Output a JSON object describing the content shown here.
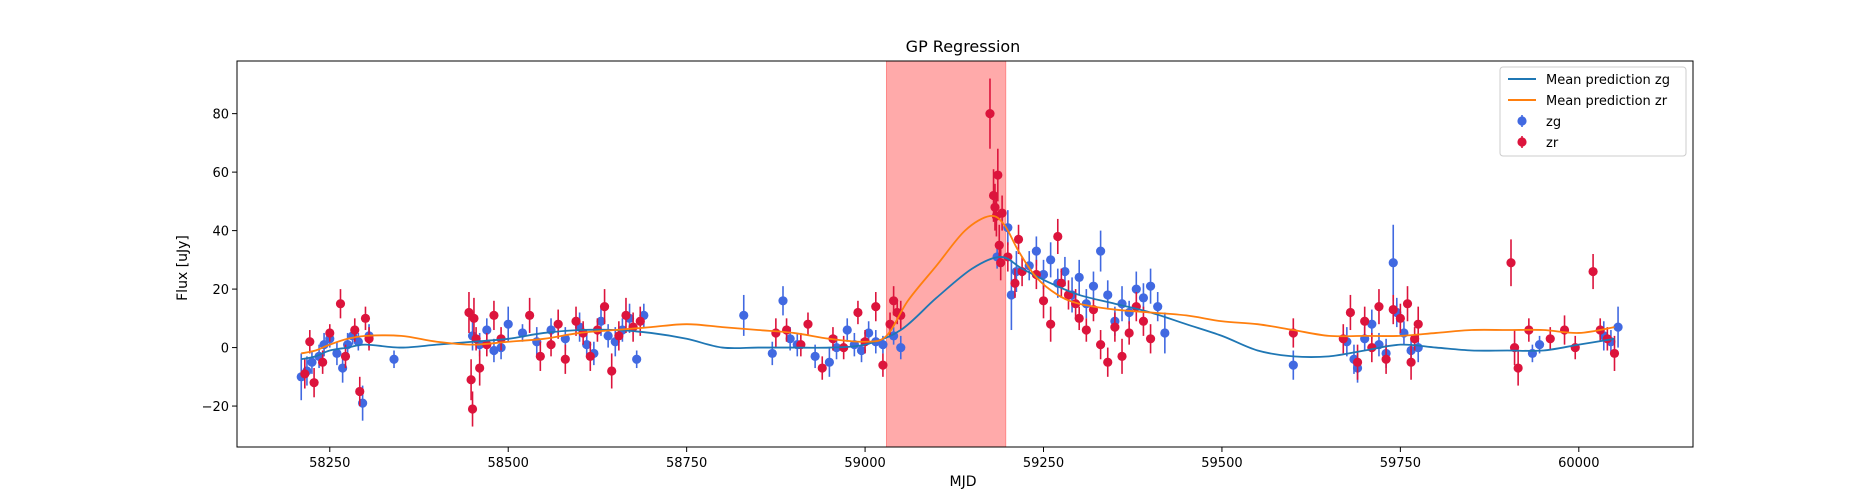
{
  "chart_data": {
    "type": "scatter",
    "title": "GP Regression",
    "xlabel": "MJD",
    "ylabel": "Flux [uJy]",
    "xlim": [
      58120,
      60160
    ],
    "ylim": [
      -34,
      98
    ],
    "xticks": [
      58250,
      58500,
      58750,
      59000,
      59250,
      59500,
      59750,
      60000
    ],
    "yticks": [
      -20,
      0,
      20,
      40,
      60,
      80
    ],
    "grid": false,
    "legend_position": "top-right",
    "highlight_region": {
      "x_start": 59030,
      "x_end": 59197,
      "color": "#ffaaaa"
    },
    "colors": {
      "zg_line": "#1f77b4",
      "zr_line": "#ff7f0e",
      "zg_points": "#4169e1",
      "zr_points": "#dc143c"
    },
    "legend": [
      {
        "label": "Mean prediction zg",
        "kind": "line",
        "color": "#1f77b4"
      },
      {
        "label": "Mean prediction zr",
        "kind": "line",
        "color": "#ff7f0e"
      },
      {
        "label": "zg",
        "kind": "point",
        "color": "#4169e1"
      },
      {
        "label": "zr",
        "kind": "point",
        "color": "#dc143c"
      }
    ],
    "lines": [
      {
        "name": "Mean prediction zg",
        "color": "#1f77b4",
        "x": [
          58210,
          58230,
          58250,
          58275,
          58300,
          58350,
          58400,
          58450,
          58500,
          58550,
          58600,
          58650,
          58700,
          58750,
          58800,
          58850,
          58900,
          58950,
          59000,
          59050,
          59100,
          59150,
          59190,
          59220,
          59260,
          59300,
          59350,
          59400,
          59450,
          59500,
          59550,
          59600,
          59650,
          59700,
          59750,
          59800,
          59850,
          59900,
          59950,
          60000,
          60050
        ],
        "y": [
          -4,
          -3,
          -1,
          0,
          1,
          0,
          1,
          2,
          3,
          5,
          6,
          6,
          5,
          3,
          0,
          0,
          0,
          0,
          1,
          6,
          17,
          27,
          31,
          27,
          22,
          18,
          15,
          12,
          8,
          4,
          -1,
          -3,
          -3,
          -1,
          1,
          0,
          -1,
          -1,
          -1,
          1,
          3
        ]
      },
      {
        "name": "Mean prediction zr",
        "color": "#ff7f0e",
        "x": [
          58210,
          58230,
          58250,
          58275,
          58300,
          58350,
          58400,
          58450,
          58500,
          58550,
          58600,
          58650,
          58700,
          58750,
          58800,
          58850,
          58900,
          58950,
          59000,
          59030,
          59060,
          59100,
          59140,
          59175,
          59195,
          59215,
          59240,
          59270,
          59300,
          59350,
          59400,
          59450,
          59500,
          59550,
          59600,
          59650,
          59700,
          59750,
          59800,
          59850,
          59900,
          59950,
          60000,
          60050
        ],
        "y": [
          -2,
          -1,
          1,
          3,
          4,
          4,
          2,
          1,
          2,
          3,
          5,
          6,
          7,
          8,
          7,
          6,
          5,
          3,
          2,
          4,
          16,
          28,
          40,
          45,
          42,
          33,
          24,
          18,
          15,
          13,
          12,
          11,
          9,
          8,
          6,
          4,
          4,
          4,
          5,
          6,
          6,
          6,
          5,
          7
        ]
      }
    ],
    "series": [
      {
        "name": "zg",
        "color": "#4169e1",
        "points": [
          [
            58210,
            -10,
            8
          ],
          [
            58218,
            -8,
            5
          ],
          [
            58225,
            -5,
            4
          ],
          [
            58235,
            -3,
            4
          ],
          [
            58242,
            1,
            4
          ],
          [
            58250,
            3,
            3
          ],
          [
            58260,
            -2,
            4
          ],
          [
            58268,
            -7,
            5
          ],
          [
            58275,
            1,
            4
          ],
          [
            58282,
            4,
            3
          ],
          [
            58290,
            2,
            3
          ],
          [
            58296,
            -19,
            6
          ],
          [
            58305,
            4,
            4
          ],
          [
            58340,
            -4,
            3
          ],
          [
            58450,
            4,
            5
          ],
          [
            58460,
            1,
            4
          ],
          [
            58470,
            6,
            4
          ],
          [
            58480,
            -1,
            4
          ],
          [
            58490,
            0,
            4
          ],
          [
            58500,
            8,
            6
          ],
          [
            58520,
            5,
            3
          ],
          [
            58540,
            2,
            5
          ],
          [
            58560,
            6,
            4
          ],
          [
            58580,
            3,
            4
          ],
          [
            58600,
            7,
            5
          ],
          [
            58610,
            1,
            4
          ],
          [
            58620,
            -2,
            4
          ],
          [
            58630,
            9,
            5
          ],
          [
            58640,
            4,
            4
          ],
          [
            58650,
            2,
            5
          ],
          [
            58660,
            6,
            4
          ],
          [
            58670,
            10,
            5
          ],
          [
            58680,
            -4,
            3
          ],
          [
            58690,
            11,
            4
          ],
          [
            58830,
            11,
            7
          ],
          [
            58870,
            -2,
            4
          ],
          [
            58885,
            16,
            5
          ],
          [
            58895,
            3,
            4
          ],
          [
            58905,
            1,
            4
          ],
          [
            58930,
            -3,
            4
          ],
          [
            58950,
            -5,
            5
          ],
          [
            58960,
            0,
            4
          ],
          [
            58975,
            6,
            4
          ],
          [
            58985,
            1,
            4
          ],
          [
            58995,
            -1,
            4
          ],
          [
            59005,
            5,
            4
          ],
          [
            59015,
            2,
            4
          ],
          [
            59025,
            1,
            3
          ],
          [
            59040,
            4,
            3
          ],
          [
            59050,
            0,
            4
          ],
          [
            59185,
            31,
            4
          ],
          [
            59200,
            41,
            6
          ],
          [
            59205,
            18,
            12
          ],
          [
            59212,
            26,
            7
          ],
          [
            59230,
            28,
            5
          ],
          [
            59240,
            33,
            5
          ],
          [
            59250,
            25,
            5
          ],
          [
            59260,
            30,
            6
          ],
          [
            59270,
            22,
            5
          ],
          [
            59280,
            26,
            5
          ],
          [
            59290,
            18,
            6
          ],
          [
            59300,
            24,
            6
          ],
          [
            59310,
            15,
            5
          ],
          [
            59320,
            21,
            5
          ],
          [
            59330,
            33,
            7
          ],
          [
            59340,
            18,
            5
          ],
          [
            59350,
            9,
            5
          ],
          [
            59360,
            15,
            6
          ],
          [
            59370,
            12,
            4
          ],
          [
            59380,
            20,
            6
          ],
          [
            59390,
            17,
            5
          ],
          [
            59400,
            21,
            6
          ],
          [
            59410,
            14,
            5
          ],
          [
            59420,
            5,
            7
          ],
          [
            59600,
            -6,
            5
          ],
          [
            59675,
            2,
            5
          ],
          [
            59685,
            -4,
            5
          ],
          [
            59690,
            -7,
            5
          ],
          [
            59700,
            3,
            4
          ],
          [
            59710,
            8,
            5
          ],
          [
            59720,
            1,
            4
          ],
          [
            59730,
            -2,
            5
          ],
          [
            59740,
            29,
            13
          ],
          [
            59745,
            12,
            5
          ],
          [
            59755,
            5,
            4
          ],
          [
            59765,
            -1,
            4
          ],
          [
            59775,
            0,
            5
          ],
          [
            59935,
            -2,
            3
          ],
          [
            59945,
            1,
            3
          ],
          [
            60035,
            4,
            5
          ],
          [
            60045,
            2,
            4
          ],
          [
            60055,
            7,
            7
          ]
        ]
      },
      {
        "name": "zr",
        "color": "#dc143c",
        "points": [
          [
            58215,
            -9,
            5
          ],
          [
            58222,
            2,
            4
          ],
          [
            58228,
            -12,
            5
          ],
          [
            58240,
            -5,
            4
          ],
          [
            58250,
            5,
            3
          ],
          [
            58265,
            15,
            5
          ],
          [
            58272,
            -3,
            4
          ],
          [
            58285,
            6,
            4
          ],
          [
            58292,
            -15,
            5
          ],
          [
            58300,
            10,
            4
          ],
          [
            58305,
            3,
            4
          ],
          [
            58445,
            12,
            7
          ],
          [
            58448,
            -11,
            7
          ],
          [
            58450,
            -21,
            6
          ],
          [
            58452,
            10,
            7
          ],
          [
            58455,
            3,
            4
          ],
          [
            58460,
            -7,
            6
          ],
          [
            58470,
            1,
            4
          ],
          [
            58480,
            11,
            5
          ],
          [
            58490,
            3,
            4
          ],
          [
            58530,
            11,
            6
          ],
          [
            58545,
            -3,
            5
          ],
          [
            58560,
            1,
            4
          ],
          [
            58570,
            8,
            5
          ],
          [
            58580,
            -4,
            5
          ],
          [
            58595,
            9,
            5
          ],
          [
            58605,
            5,
            4
          ],
          [
            58615,
            -3,
            5
          ],
          [
            58625,
            6,
            4
          ],
          [
            58635,
            14,
            6
          ],
          [
            58645,
            -8,
            6
          ],
          [
            58655,
            4,
            5
          ],
          [
            58665,
            11,
            6
          ],
          [
            58675,
            7,
            5
          ],
          [
            58685,
            9,
            5
          ],
          [
            58875,
            5,
            5
          ],
          [
            58890,
            6,
            4
          ],
          [
            58910,
            1,
            4
          ],
          [
            58920,
            8,
            4
          ],
          [
            58940,
            -7,
            4
          ],
          [
            58955,
            3,
            4
          ],
          [
            58970,
            0,
            4
          ],
          [
            58990,
            12,
            4
          ],
          [
            59000,
            2,
            4
          ],
          [
            59015,
            14,
            5
          ],
          [
            59025,
            -6,
            4
          ],
          [
            59035,
            8,
            4
          ],
          [
            59040,
            16,
            5
          ],
          [
            59045,
            12,
            4
          ],
          [
            59050,
            11,
            5
          ],
          [
            59175,
            80,
            12
          ],
          [
            59180,
            52,
            9
          ],
          [
            59182,
            48,
            8
          ],
          [
            59184,
            45,
            7
          ],
          [
            59186,
            59,
            9
          ],
          [
            59188,
            35,
            7
          ],
          [
            59190,
            29,
            6
          ],
          [
            59192,
            46,
            6
          ],
          [
            59200,
            31,
            5
          ],
          [
            59210,
            22,
            5
          ],
          [
            59215,
            37,
            5
          ],
          [
            59220,
            26,
            5
          ],
          [
            59240,
            25,
            5
          ],
          [
            59250,
            16,
            6
          ],
          [
            59260,
            8,
            6
          ],
          [
            59270,
            38,
            6
          ],
          [
            59275,
            22,
            5
          ],
          [
            59285,
            18,
            5
          ],
          [
            59295,
            15,
            5
          ],
          [
            59300,
            10,
            4
          ],
          [
            59310,
            6,
            4
          ],
          [
            59320,
            13,
            4
          ],
          [
            59330,
            1,
            5
          ],
          [
            59340,
            -5,
            5
          ],
          [
            59350,
            7,
            5
          ],
          [
            59360,
            -3,
            6
          ],
          [
            59370,
            5,
            4
          ],
          [
            59380,
            14,
            5
          ],
          [
            59390,
            9,
            5
          ],
          [
            59400,
            3,
            5
          ],
          [
            59600,
            5,
            5
          ],
          [
            59670,
            3,
            5
          ],
          [
            59680,
            12,
            6
          ],
          [
            59690,
            -5,
            6
          ],
          [
            59700,
            9,
            5
          ],
          [
            59710,
            0,
            5
          ],
          [
            59720,
            14,
            6
          ],
          [
            59730,
            -4,
            5
          ],
          [
            59740,
            13,
            5
          ],
          [
            59750,
            10,
            5
          ],
          [
            59760,
            15,
            6
          ],
          [
            59765,
            -5,
            6
          ],
          [
            59770,
            3,
            4
          ],
          [
            59775,
            8,
            6
          ],
          [
            59905,
            29,
            8
          ],
          [
            59910,
            0,
            6
          ],
          [
            59915,
            -7,
            6
          ],
          [
            59930,
            6,
            4
          ],
          [
            59960,
            3,
            4
          ],
          [
            59980,
            6,
            5
          ],
          [
            59995,
            0,
            4
          ],
          [
            60020,
            26,
            6
          ],
          [
            60030,
            6,
            4
          ],
          [
            60040,
            3,
            4
          ],
          [
            60050,
            -2,
            6
          ]
        ]
      }
    ]
  }
}
